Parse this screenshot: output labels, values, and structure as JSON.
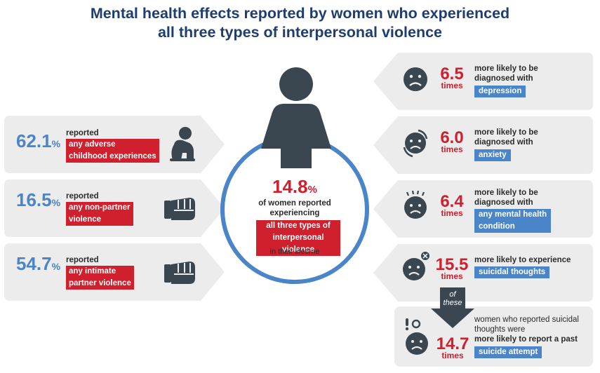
{
  "title": {
    "line1": "Mental health effects reported by women who experienced",
    "line2": "all three types of interpersonal violence"
  },
  "colors": {
    "title": "#1f3d6e",
    "blue": "#4a84c9",
    "red": "#d0202e",
    "panel": "#ececec",
    "icon": "#3a4650"
  },
  "left_stats": [
    {
      "value": "62.1",
      "pct": "%",
      "reported": "reported",
      "tag_lines": [
        "any adverse",
        "childhood experiences"
      ],
      "icon": "sad-child-icon"
    },
    {
      "value": "16.5",
      "pct": "%",
      "reported": "reported",
      "tag_lines": [
        "any non-partner",
        "violence"
      ],
      "icon": "fist-icon"
    },
    {
      "value": "54.7",
      "pct": "%",
      "reported": "reported",
      "tag_lines": [
        "any intimate",
        "partner violence"
      ],
      "icon": "fist-icon"
    }
  ],
  "center": {
    "value": "14.8",
    "pct": "%",
    "line1": "of women reported",
    "line2": "experiencing",
    "tag_lines": [
      "all three types of",
      "interpersonal violence"
    ],
    "line3": "in their lifetime",
    "icon": "woman-figure-icon"
  },
  "right_stats": [
    {
      "value": "6.5",
      "times": "times",
      "line1": "more likely to be",
      "line2": "diagnosed with",
      "tag_lines": [
        "depression"
      ],
      "icon": "sad-face-icon"
    },
    {
      "value": "6.0",
      "times": "times",
      "line1": "more likely to be",
      "line2": "diagnosed with",
      "tag_lines": [
        "anxiety"
      ],
      "icon": "anxious-face-icon"
    },
    {
      "value": "6.4",
      "times": "times",
      "line1": "more likely to be",
      "line2": "diagnosed with",
      "tag_lines": [
        "any mental health",
        "condition"
      ],
      "icon": "stressed-face-icon"
    },
    {
      "value": "15.5",
      "times": "times",
      "line1": "more likely to experience",
      "tag_lines": [
        "suicidal thoughts"
      ],
      "icon": "worried-face-icon"
    }
  ],
  "arrow_text": {
    "line1": "of",
    "line2": "these"
  },
  "bottom_stat": {
    "line1": "women who reported suicidal",
    "line2": "thoughts were",
    "line3": "more likely to report a past",
    "tag_lines": [
      "suicide attempt"
    ],
    "value": "14.7",
    "times": "times",
    "icon": "alarmed-face-icon"
  }
}
